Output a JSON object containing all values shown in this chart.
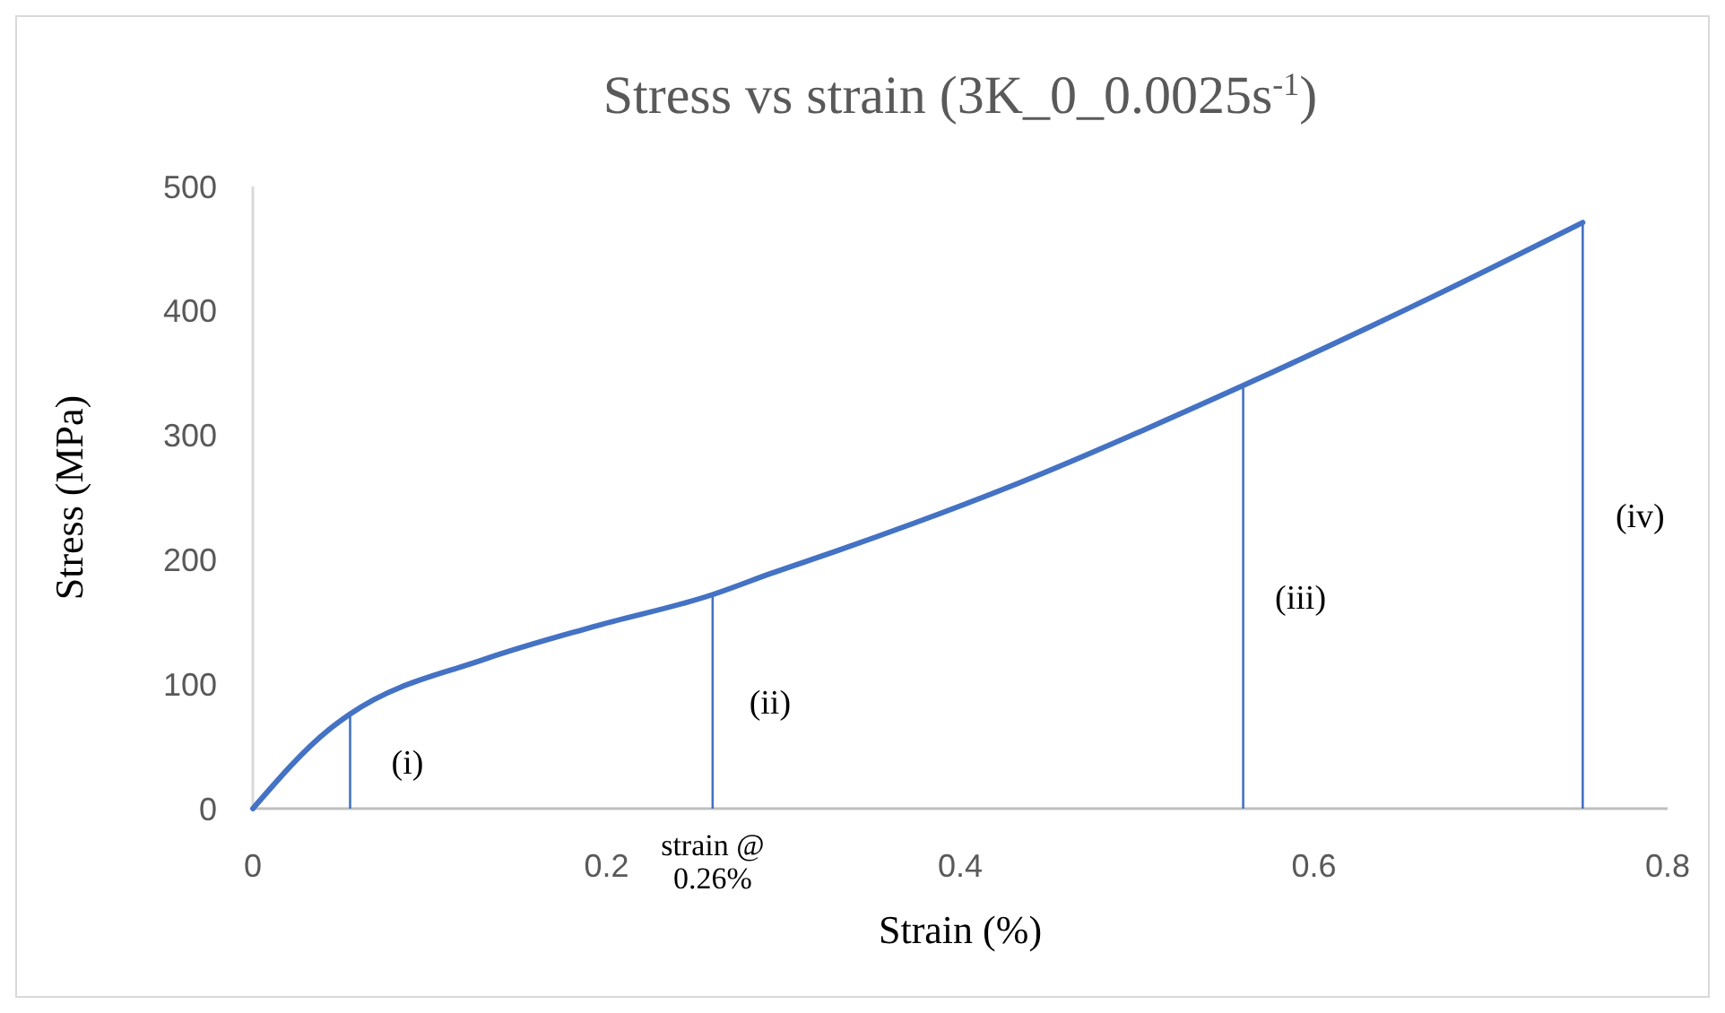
{
  "chart_data": {
    "type": "line",
    "title": "Stress vs strain (3K_0_0.0025s$^{-1}$)",
    "xlabel": "Strain (%)",
    "ylabel": "Stress (MPa)",
    "x": [
      0,
      0.0426,
      0.055,
      0.131,
      0.192,
      0.26,
      0.293,
      0.33,
      0.432,
      0.56,
      0.668,
      0.752
    ],
    "series": [
      {
        "color": "#4472c4",
        "values": [
          0,
          63,
          76,
          120,
          146,
          172,
          189,
          207,
          261,
          340,
          412,
          471
        ]
      }
    ],
    "xlim": [
      0,
      0.8
    ],
    "ylim": [
      0,
      500
    ],
    "xticks": [
      0,
      0.2,
      0.4,
      0.6,
      0.8
    ],
    "yticks": [
      0,
      100,
      200,
      300,
      400,
      500
    ],
    "grid": false,
    "marker": "none",
    "line_style": "solid",
    "ref_lines": [
      {
        "axis": "x",
        "value": 0.055,
        "color": "#4472c4"
      },
      {
        "axis": "x",
        "value": 0.26,
        "label": "strain @ 0.26%",
        "color": "#4472c4"
      },
      {
        "axis": "x",
        "value": 0.56,
        "color": "#4472c4"
      },
      {
        "axis": "x",
        "value": 0.752,
        "color": "#4472c4"
      }
    ],
    "annotations": [
      "(i)",
      "(ii)",
      "(iii)",
      "(iv)"
    ]
  }
}
